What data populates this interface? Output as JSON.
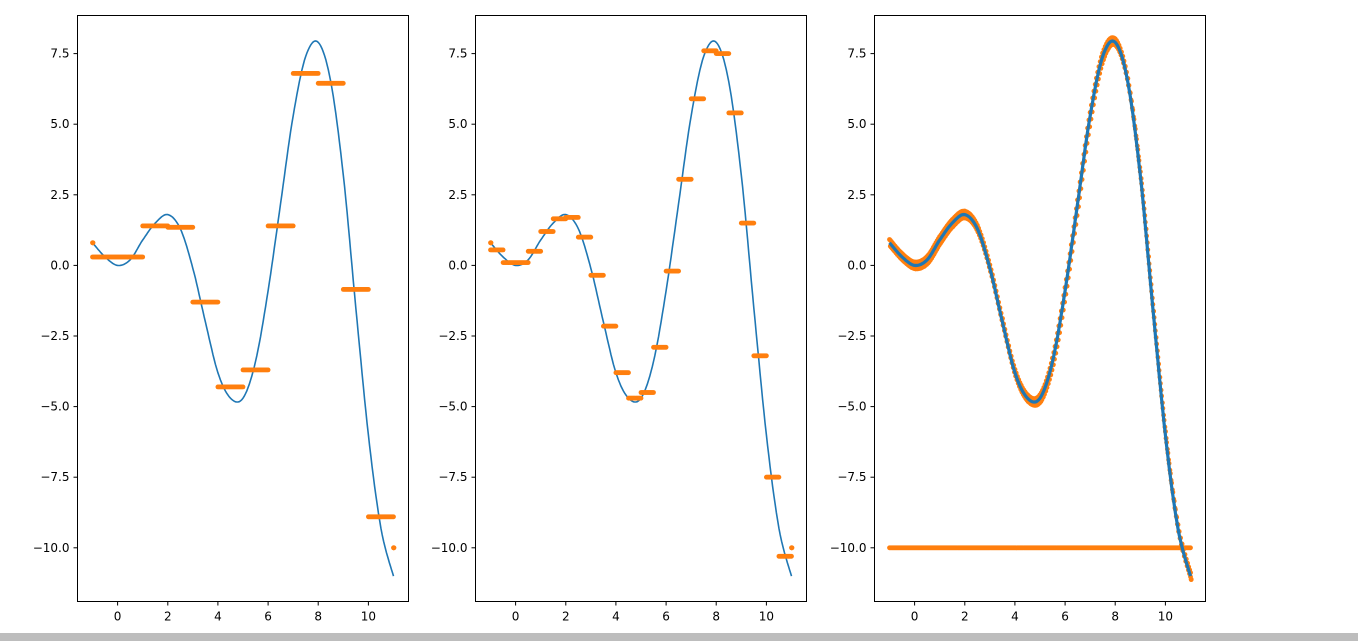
{
  "colors": {
    "curve": "#1f77b4",
    "points": "#ff7f0e",
    "axes": "#000000",
    "background": "#ffffff"
  },
  "chart_data": [
    {
      "type": "line",
      "title": "",
      "xlabel": "",
      "ylabel": "",
      "xlim": [
        -1.6,
        11.6
      ],
      "ylim": [
        -11.9,
        8.85
      ],
      "xticks": [
        0,
        2,
        4,
        6,
        8,
        10
      ],
      "xtick_labels": [
        "0",
        "2",
        "4",
        "6",
        "8",
        "10"
      ],
      "yticks": [
        7.5,
        5.0,
        2.5,
        0.0,
        -2.5,
        -5.0,
        -7.5,
        -10.0
      ],
      "ytick_labels": [
        "7.5",
        "5.0",
        "2.5",
        "0.0",
        "−2.5",
        "−5.0",
        "−7.5",
        "−10.0"
      ],
      "grid": false,
      "series": [
        {
          "kind": "line",
          "color": "#1f77b4",
          "x": [
            -1,
            -0.5,
            0,
            0.5,
            1,
            1.5,
            2,
            2.5,
            3,
            3.5,
            4,
            4.5,
            5,
            5.5,
            6,
            6.5,
            7,
            7.5,
            8,
            8.5,
            9,
            9.5,
            10,
            10.5,
            11
          ],
          "y": [
            0.8,
            0.3,
            0.0,
            0.2,
            0.9,
            1.5,
            1.8,
            1.3,
            -0.1,
            -2.0,
            -3.8,
            -4.7,
            -4.7,
            -3.4,
            -0.9,
            2.2,
            5.3,
            7.4,
            7.9,
            6.5,
            3.2,
            -1.5,
            -6.0,
            -9.3,
            -11.0
          ]
        },
        {
          "kind": "step-scatter",
          "color": "#ff7f0e",
          "segments": [
            {
              "x0": -1.0,
              "x1": -0.98,
              "y": 0.8
            },
            {
              "x0": -1.0,
              "x1": 1.0,
              "y": 0.3
            },
            {
              "x0": 1.0,
              "x1": 2.0,
              "y": 1.4
            },
            {
              "x0": 2.0,
              "x1": 3.0,
              "y": 1.35
            },
            {
              "x0": 3.0,
              "x1": 4.0,
              "y": -1.3
            },
            {
              "x0": 4.0,
              "x1": 5.0,
              "y": -4.3
            },
            {
              "x0": 5.0,
              "x1": 6.0,
              "y": -3.7
            },
            {
              "x0": 6.0,
              "x1": 7.0,
              "y": 1.4
            },
            {
              "x0": 7.0,
              "x1": 8.0,
              "y": 6.8
            },
            {
              "x0": 8.0,
              "x1": 9.0,
              "y": 6.45
            },
            {
              "x0": 9.0,
              "x1": 10.0,
              "y": -0.85
            },
            {
              "x0": 10.0,
              "x1": 11.0,
              "y": -8.9
            },
            {
              "x0": 11.0,
              "x1": 11.02,
              "y": -10.0
            }
          ]
        }
      ]
    },
    {
      "type": "line",
      "title": "",
      "xlabel": "",
      "ylabel": "",
      "xlim": [
        -1.6,
        11.6
      ],
      "ylim": [
        -11.9,
        8.85
      ],
      "xticks": [
        0,
        2,
        4,
        6,
        8,
        10
      ],
      "xtick_labels": [
        "0",
        "2",
        "4",
        "6",
        "8",
        "10"
      ],
      "yticks": [
        7.5,
        5.0,
        2.5,
        0.0,
        -2.5,
        -5.0,
        -7.5,
        -10.0
      ],
      "ytick_labels": [
        "7.5",
        "5.0",
        "2.5",
        "0.0",
        "−2.5",
        "−5.0",
        "−7.5",
        "−10.0"
      ],
      "grid": false,
      "series": [
        {
          "kind": "line",
          "color": "#1f77b4",
          "x": [
            -1,
            -0.5,
            0,
            0.5,
            1,
            1.5,
            2,
            2.5,
            3,
            3.5,
            4,
            4.5,
            5,
            5.5,
            6,
            6.5,
            7,
            7.5,
            8,
            8.5,
            9,
            9.5,
            10,
            10.5,
            11
          ],
          "y": [
            0.8,
            0.3,
            0.0,
            0.2,
            0.9,
            1.5,
            1.8,
            1.3,
            -0.1,
            -2.0,
            -3.8,
            -4.7,
            -4.7,
            -3.4,
            -0.9,
            2.2,
            5.3,
            7.4,
            7.9,
            6.5,
            3.2,
            -1.5,
            -6.0,
            -9.3,
            -11.0
          ]
        },
        {
          "kind": "step-scatter",
          "color": "#ff7f0e",
          "segments": [
            {
              "x0": -1.0,
              "x1": -0.98,
              "y": 0.8
            },
            {
              "x0": -1.0,
              "x1": -0.5,
              "y": 0.55
            },
            {
              "x0": -0.5,
              "x1": 0.5,
              "y": 0.1
            },
            {
              "x0": 0.5,
              "x1": 1.0,
              "y": 0.5
            },
            {
              "x0": 1.0,
              "x1": 1.5,
              "y": 1.2
            },
            {
              "x0": 1.5,
              "x1": 2.0,
              "y": 1.65
            },
            {
              "x0": 2.0,
              "x1": 2.5,
              "y": 1.7
            },
            {
              "x0": 2.5,
              "x1": 3.0,
              "y": 1.0
            },
            {
              "x0": 3.0,
              "x1": 3.5,
              "y": -0.35
            },
            {
              "x0": 3.5,
              "x1": 4.0,
              "y": -2.15
            },
            {
              "x0": 4.0,
              "x1": 4.5,
              "y": -3.8
            },
            {
              "x0": 4.5,
              "x1": 5.0,
              "y": -4.7
            },
            {
              "x0": 5.0,
              "x1": 5.5,
              "y": -4.5
            },
            {
              "x0": 5.5,
              "x1": 6.0,
              "y": -2.9
            },
            {
              "x0": 6.0,
              "x1": 6.5,
              "y": -0.2
            },
            {
              "x0": 6.5,
              "x1": 7.0,
              "y": 3.05
            },
            {
              "x0": 7.0,
              "x1": 7.5,
              "y": 5.9
            },
            {
              "x0": 7.5,
              "x1": 8.0,
              "y": 7.6
            },
            {
              "x0": 8.0,
              "x1": 8.5,
              "y": 7.5
            },
            {
              "x0": 8.5,
              "x1": 9.0,
              "y": 5.4
            },
            {
              "x0": 9.0,
              "x1": 9.5,
              "y": 1.5
            },
            {
              "x0": 9.5,
              "x1": 10.0,
              "y": -3.2
            },
            {
              "x0": 10.0,
              "x1": 10.5,
              "y": -7.5
            },
            {
              "x0": 10.5,
              "x1": 11.0,
              "y": -10.3
            },
            {
              "x0": 11.0,
              "x1": 11.02,
              "y": -10.0
            }
          ]
        }
      ]
    },
    {
      "type": "line",
      "title": "",
      "xlabel": "",
      "ylabel": "",
      "xlim": [
        -1.6,
        11.6
      ],
      "ylim": [
        -11.9,
        8.85
      ],
      "xticks": [
        0,
        2,
        4,
        6,
        8,
        10
      ],
      "xtick_labels": [
        "0",
        "2",
        "4",
        "6",
        "8",
        "10"
      ],
      "yticks": [
        7.5,
        5.0,
        2.5,
        0.0,
        -2.5,
        -5.0,
        -7.5,
        -10.0
      ],
      "ytick_labels": [
        "7.5",
        "5.0",
        "2.5",
        "0.0",
        "−2.5",
        "−5.0",
        "−7.5",
        "−10.0"
      ],
      "grid": false,
      "series": [
        {
          "kind": "line",
          "color": "#1f77b4",
          "x": [
            -1,
            -0.5,
            0,
            0.5,
            1,
            1.5,
            2,
            2.5,
            3,
            3.5,
            4,
            4.5,
            5,
            5.5,
            6,
            6.5,
            7,
            7.5,
            8,
            8.5,
            9,
            9.5,
            10,
            10.5,
            11
          ],
          "y": [
            0.8,
            0.3,
            0.0,
            0.2,
            0.9,
            1.5,
            1.8,
            1.3,
            -0.1,
            -2.0,
            -3.8,
            -4.7,
            -4.7,
            -3.4,
            -0.9,
            2.2,
            5.3,
            7.4,
            7.9,
            6.5,
            3.2,
            -1.5,
            -6.0,
            -9.3,
            -11.0
          ],
          "width": 3.2
        },
        {
          "kind": "curve-scatter",
          "color": "#ff7f0e",
          "follows_line": true
        },
        {
          "kind": "flat-scatter",
          "color": "#ff7f0e",
          "x0": -1.0,
          "x1": 11.0,
          "y": -10.0
        }
      ]
    }
  ]
}
